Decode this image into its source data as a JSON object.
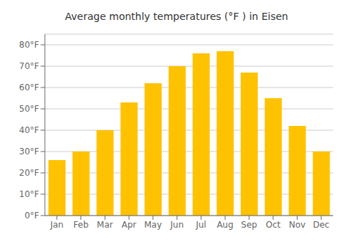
{
  "chart_data": {
    "type": "bar",
    "title": "Average monthly temperatures (°F ) in Eisen",
    "categories": [
      "Jan",
      "Feb",
      "Mar",
      "Apr",
      "May",
      "Jun",
      "Jul",
      "Aug",
      "Sep",
      "Oct",
      "Nov",
      "Dec"
    ],
    "values": [
      26,
      30,
      40,
      53,
      62,
      70,
      76,
      77,
      67,
      55,
      42,
      30
    ],
    "color": "#FFC200",
    "ylim": [
      0,
      85
    ],
    "yticks": [
      {
        "value": 0,
        "label": "0°F"
      },
      {
        "value": 10,
        "label": "10°F"
      },
      {
        "value": 20,
        "label": "20°F"
      },
      {
        "value": 30,
        "label": "30°F"
      },
      {
        "value": 40,
        "label": "40°F"
      },
      {
        "value": 50,
        "label": "50°F"
      },
      {
        "value": 60,
        "label": "60°F"
      },
      {
        "value": 70,
        "label": "70°F"
      },
      {
        "value": 80,
        "label": "80°F"
      }
    ],
    "grid": true
  }
}
